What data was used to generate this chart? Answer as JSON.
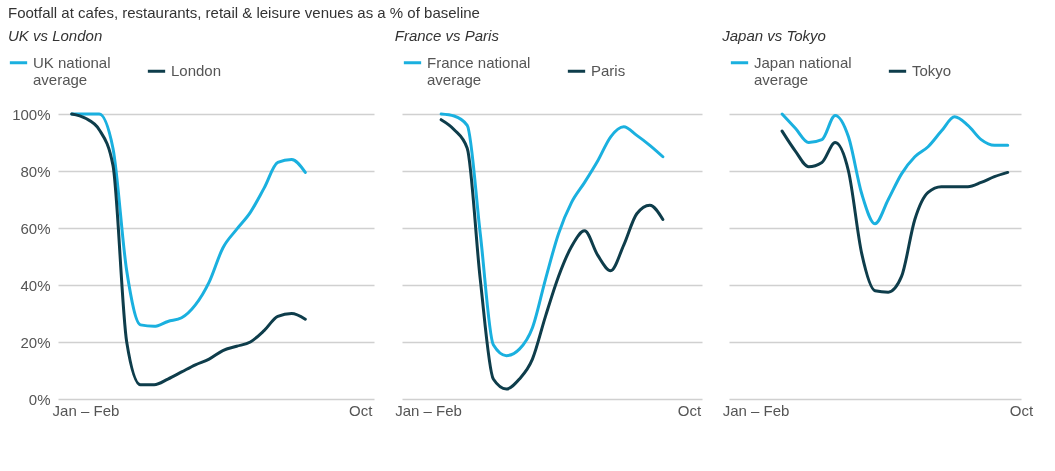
{
  "chart_data": [
    {
      "type": "line",
      "title": "Footfall at cafes, restaurants, retail & leisure venues as a % of baseline",
      "subtitle": "UK vs London",
      "categories": [
        null,
        null,
        "Jan – Feb",
        null,
        null,
        null,
        null,
        null,
        null,
        null,
        null,
        null,
        null,
        null,
        null,
        null,
        null,
        null,
        null,
        null,
        null,
        null,
        "Oct",
        null
      ],
      "ylim": [
        0,
        100
      ],
      "yticks": [
        {
          "value": 0,
          "label": "0%"
        },
        {
          "value": 20,
          "label": "20%"
        },
        {
          "value": 40,
          "label": "40%"
        },
        {
          "value": 60,
          "label": "60%"
        },
        {
          "value": 80,
          "label": "80%"
        },
        {
          "value": 100,
          "label": "100%"
        }
      ],
      "grid": "y",
      "legend": "top left",
      "series": [
        {
          "name": "UK national average",
          "color": "#1ab0df",
          "values": [
            null,
            100,
            100,
            100,
            88,
            45,
            26,
            25.5,
            27.2,
            28.5,
            33,
            41,
            53,
            59.5,
            65.5,
            74,
            83,
            84,
            79.5,
            null,
            null,
            null,
            null,
            null
          ]
        },
        {
          "name": "London",
          "color": "#0e3d4b",
          "values": [
            null,
            100,
            98.5,
            94.5,
            82,
            20,
            5,
            5,
            7,
            9.5,
            12,
            14,
            17,
            18.5,
            20,
            24,
            29,
            30,
            28,
            null,
            null,
            null,
            null,
            null
          ]
        }
      ]
    },
    {
      "type": "line",
      "subtitle": "France vs Paris",
      "categories": [
        null,
        null,
        "Jan – Feb",
        null,
        null,
        null,
        null,
        null,
        null,
        null,
        null,
        null,
        null,
        null,
        null,
        null,
        null,
        null,
        null,
        null,
        null,
        null,
        "Oct",
        null
      ],
      "ylim": [
        0,
        100
      ],
      "yticks": [
        0,
        20,
        40,
        60,
        80,
        100
      ],
      "grid": "y",
      "legend": "top left",
      "tick_labels": "x",
      "series": [
        {
          "name": "France national average",
          "color": "#1ab0df",
          "values": [
            null,
            null,
            null,
            100,
            99.3,
            96,
            58,
            19,
            15.2,
            17.5,
            25,
            42,
            58,
            69,
            76,
            83.5,
            92,
            95.5,
            92.5,
            89,
            85,
            null,
            null,
            null
          ]
        },
        {
          "name": "Paris",
          "color": "#0e3d4b",
          "values": [
            null,
            null,
            null,
            98,
            94.5,
            88,
            42,
            7,
            3.5,
            7,
            14,
            29,
            43,
            53.5,
            59,
            50.5,
            45,
            54,
            65,
            68,
            63,
            null,
            null,
            null
          ]
        }
      ]
    },
    {
      "type": "line",
      "subtitle": "Japan vs Tokyo",
      "categories": [
        null,
        null,
        "Jan – Feb",
        null,
        null,
        null,
        null,
        null,
        null,
        null,
        null,
        null,
        null,
        null,
        null,
        null,
        null,
        null,
        null,
        null,
        null,
        null,
        "Oct"
      ],
      "ylim": [
        0,
        100
      ],
      "yticks": [
        0,
        20,
        40,
        60,
        80,
        100
      ],
      "grid": "y",
      "legend": "top left",
      "tick_labels": "x",
      "series": [
        {
          "name": "Japan national average",
          "color": "#1ab0df",
          "values": [
            null,
            null,
            null,
            null,
            100,
            95,
            90,
            91,
            99.5,
            92,
            72,
            61.5,
            70,
            79,
            85,
            88.5,
            94,
            99,
            96,
            91,
            89,
            89,
            null
          ]
        },
        {
          "name": "Tokyo",
          "color": "#0e3d4b",
          "values": [
            null,
            null,
            null,
            null,
            94,
            87,
            81.5,
            83,
            90,
            80,
            51,
            38,
            37.5,
            43,
            63,
            72.5,
            74.5,
            74.5,
            74.5,
            76,
            78,
            79.5,
            null
          ]
        }
      ]
    }
  ]
}
